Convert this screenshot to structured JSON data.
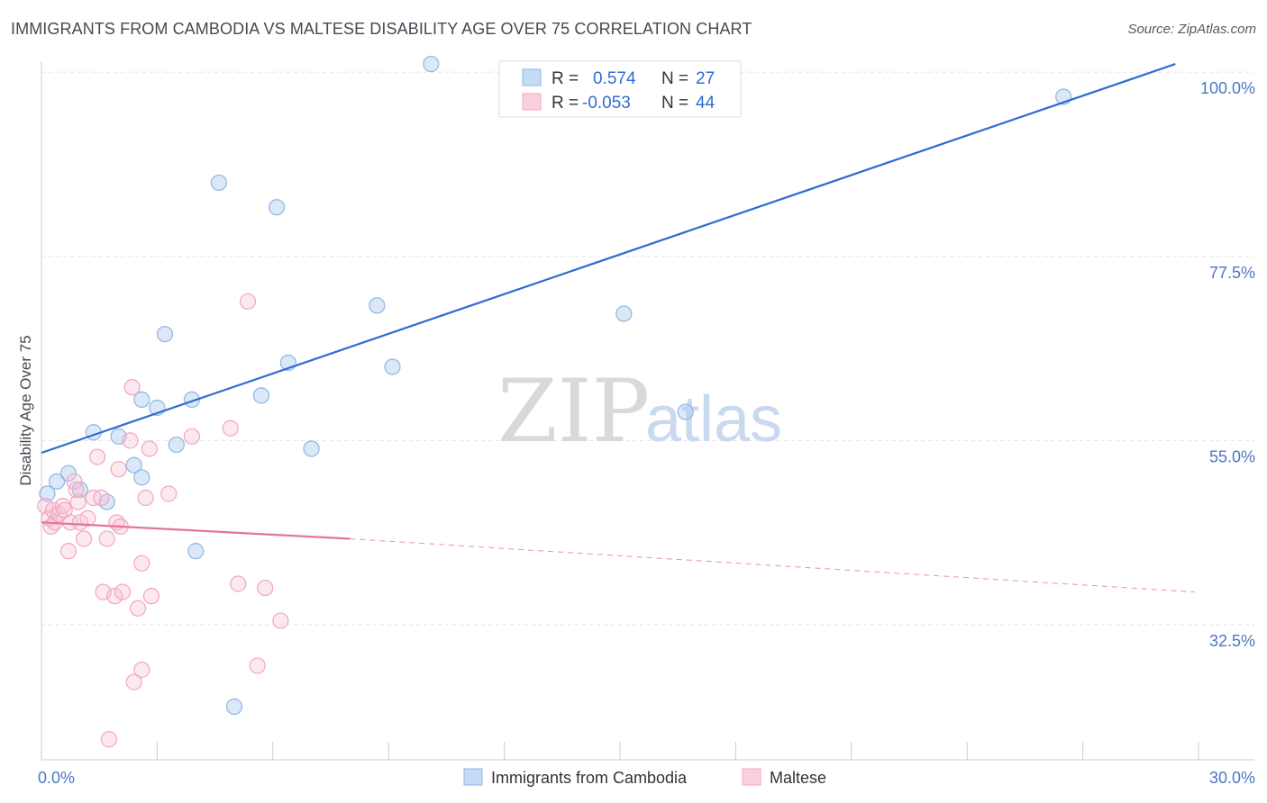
{
  "title": "IMMIGRANTS FROM CAMBODIA VS MALTESE DISABILITY AGE OVER 75 CORRELATION CHART",
  "source": "Source: ZipAtlas.com",
  "watermark": {
    "zip": "ZIP",
    "atlas": "atlas"
  },
  "chart_data": {
    "type": "scatter",
    "ylabel": "Disability Age Over 75",
    "xlim": [
      0,
      30
    ],
    "ylim": [
      16,
      102
    ],
    "x_ticks": [
      {
        "value": 0,
        "label": "0.0%"
      },
      {
        "value": 30,
        "label": "30.0%"
      }
    ],
    "y_ticks": [
      {
        "value": 100,
        "label": "100.0%"
      },
      {
        "value": 77.5,
        "label": "77.5%"
      },
      {
        "value": 55,
        "label": "55.0%"
      },
      {
        "value": 32.5,
        "label": "32.5%"
      }
    ],
    "grid": true,
    "legend_placement": "top-center",
    "series": [
      {
        "name": "Immigrants from Cambodia",
        "color": "#9fc3ea",
        "line_color": "#2f6bd1",
        "R": "0.574",
        "N": "27",
        "points": [
          [
            0.15,
            48.5
          ],
          [
            0.4,
            50.0
          ],
          [
            0.7,
            51.0
          ],
          [
            1.0,
            49.0
          ],
          [
            1.35,
            56.0
          ],
          [
            1.7,
            47.5
          ],
          [
            2.0,
            55.5
          ],
          [
            2.4,
            52.0
          ],
          [
            2.6,
            50.5
          ],
          [
            2.6,
            60.0
          ],
          [
            3.0,
            59.0
          ],
          [
            3.2,
            68.0
          ],
          [
            3.5,
            54.5
          ],
          [
            3.9,
            60.0
          ],
          [
            4.6,
            86.5
          ],
          [
            5.0,
            22.5
          ],
          [
            5.7,
            60.5
          ],
          [
            6.1,
            83.5
          ],
          [
            6.4,
            64.5
          ],
          [
            7.0,
            54.0
          ],
          [
            8.7,
            71.5
          ],
          [
            9.1,
            64.0
          ],
          [
            10.1,
            101.0
          ],
          [
            15.1,
            70.5
          ],
          [
            16.7,
            58.5
          ],
          [
            26.5,
            97.0
          ],
          [
            4.0,
            41.5
          ]
        ],
        "trend": {
          "x0": 0,
          "y0": 53.5,
          "x1": 29.4,
          "y1": 101.0
        }
      },
      {
        "name": "Maltese",
        "color": "#f5b8cc",
        "line_color": "#e2759b",
        "R": "-0.053",
        "N": "44",
        "points": [
          [
            0.1,
            47.0
          ],
          [
            0.2,
            45.5
          ],
          [
            0.25,
            44.5
          ],
          [
            0.3,
            46.5
          ],
          [
            0.35,
            45.0
          ],
          [
            0.45,
            46.0
          ],
          [
            0.55,
            47.0
          ],
          [
            0.6,
            46.5
          ],
          [
            0.7,
            41.5
          ],
          [
            0.75,
            45.0
          ],
          [
            0.85,
            50.0
          ],
          [
            0.95,
            47.5
          ],
          [
            1.0,
            45.0
          ],
          [
            1.1,
            43.0
          ],
          [
            1.2,
            45.5
          ],
          [
            1.35,
            48.0
          ],
          [
            1.45,
            53.0
          ],
          [
            1.55,
            48.0
          ],
          [
            1.6,
            36.5
          ],
          [
            1.7,
            43.0
          ],
          [
            1.75,
            18.5
          ],
          [
            1.9,
            36.0
          ],
          [
            1.95,
            45.0
          ],
          [
            2.0,
            51.5
          ],
          [
            2.05,
            44.5
          ],
          [
            2.1,
            36.5
          ],
          [
            2.3,
            55.0
          ],
          [
            2.35,
            61.5
          ],
          [
            2.4,
            25.5
          ],
          [
            2.5,
            34.5
          ],
          [
            2.6,
            27.0
          ],
          [
            2.6,
            40.0
          ],
          [
            2.7,
            48.0
          ],
          [
            2.8,
            54.0
          ],
          [
            2.85,
            36.0
          ],
          [
            3.3,
            48.5
          ],
          [
            3.9,
            55.5
          ],
          [
            4.9,
            56.5
          ],
          [
            5.1,
            37.5
          ],
          [
            5.35,
            72.0
          ],
          [
            5.6,
            27.5
          ],
          [
            5.8,
            37.0
          ],
          [
            6.2,
            33.0
          ],
          [
            0.9,
            49.0
          ]
        ],
        "trend": {
          "x0": 0,
          "y0": 45.0,
          "x1": 8.0,
          "y1": 43.0
        },
        "trend_dashed": {
          "x0": 8.0,
          "y0": 43.0,
          "x1": 29.9,
          "y1": 36.5
        }
      }
    ]
  }
}
